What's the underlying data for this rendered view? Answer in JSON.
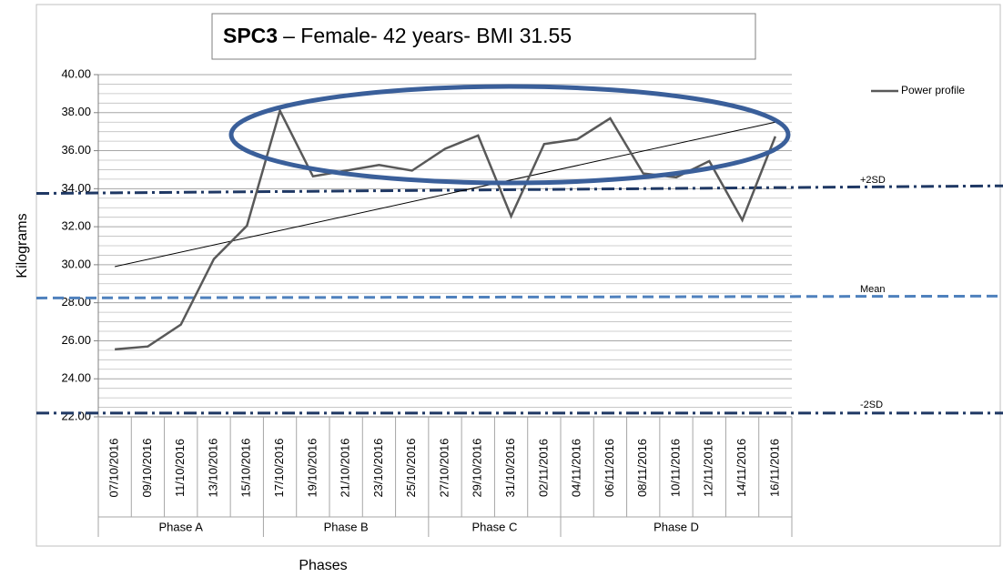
{
  "chart_data": {
    "type": "line",
    "title_bold": "SPC3",
    "title_rest": "– Female- 42 years- BMI 31.55",
    "y_label": "Kilograms",
    "x_label": "Phases",
    "categories": [
      "07/10/2016",
      "09/10/2016",
      "11/10/2016",
      "13/10/2016",
      "15/10/2016",
      "17/10/2016",
      "19/10/2016",
      "21/10/2016",
      "23/10/2016",
      "25/10/2016",
      "27/10/2016",
      "29/10/2016",
      "31/10/2016",
      "02/11/2016",
      "04/11/2016",
      "06/11/2016",
      "08/11/2016",
      "10/11/2016",
      "12/11/2016",
      "14/11/2016",
      "16/11/2016"
    ],
    "series": [
      {
        "name": "Power profile",
        "color": "#595959",
        "values": [
          25.55,
          25.7,
          26.85,
          30.3,
          32.05,
          38.1,
          34.65,
          34.95,
          35.25,
          34.95,
          36.1,
          36.8,
          32.55,
          36.35,
          36.6,
          37.7,
          34.8,
          34.6,
          35.45,
          32.35,
          36.75
        ]
      }
    ],
    "trend": {
      "color": "#000000",
      "values": [
        29.9,
        37.5
      ]
    },
    "reference_lines": [
      {
        "name": "+2SD",
        "color": "#1f3864",
        "dash": "dashdot",
        "values": [
          33.75,
          34.15
        ]
      },
      {
        "name": "Mean",
        "color": "#4f81bd",
        "dash": "dashed",
        "values": [
          28.25,
          28.35
        ]
      },
      {
        "name": "-2SD",
        "color": "#1f3864",
        "dash": "dashdot",
        "values": [
          22.2,
          22.2
        ]
      }
    ],
    "phases": [
      {
        "name": "Phase A",
        "span": 5
      },
      {
        "name": "Phase B",
        "span": 5
      },
      {
        "name": "Phase C",
        "span": 4
      },
      {
        "name": "Phase D",
        "span": 7
      }
    ],
    "ylim": [
      22,
      40
    ],
    "yticks": [
      {
        "value": 22,
        "label": "22.00"
      },
      {
        "value": 24,
        "label": "24.00"
      },
      {
        "value": 26,
        "label": "26.00"
      },
      {
        "value": 28,
        "label": "28.00"
      },
      {
        "value": 30,
        "label": "30.00"
      },
      {
        "value": 32,
        "label": "32.00"
      },
      {
        "value": 34,
        "label": "34.00"
      },
      {
        "value": 36,
        "label": "36.00"
      },
      {
        "value": 38,
        "label": "38.00"
      },
      {
        "value": 40,
        "label": "40.00"
      }
    ],
    "minor_yticks": [
      22.5,
      23,
      23.5,
      24.5,
      25,
      25.5,
      26.5,
      27,
      27.5,
      28.5,
      29,
      29.5,
      30.5,
      31,
      31.5,
      32.5,
      33,
      33.5,
      34.5,
      35,
      35.5,
      36.5,
      37,
      37.5,
      38.5,
      39,
      39.5
    ],
    "grid": true,
    "legend": "top-right"
  }
}
